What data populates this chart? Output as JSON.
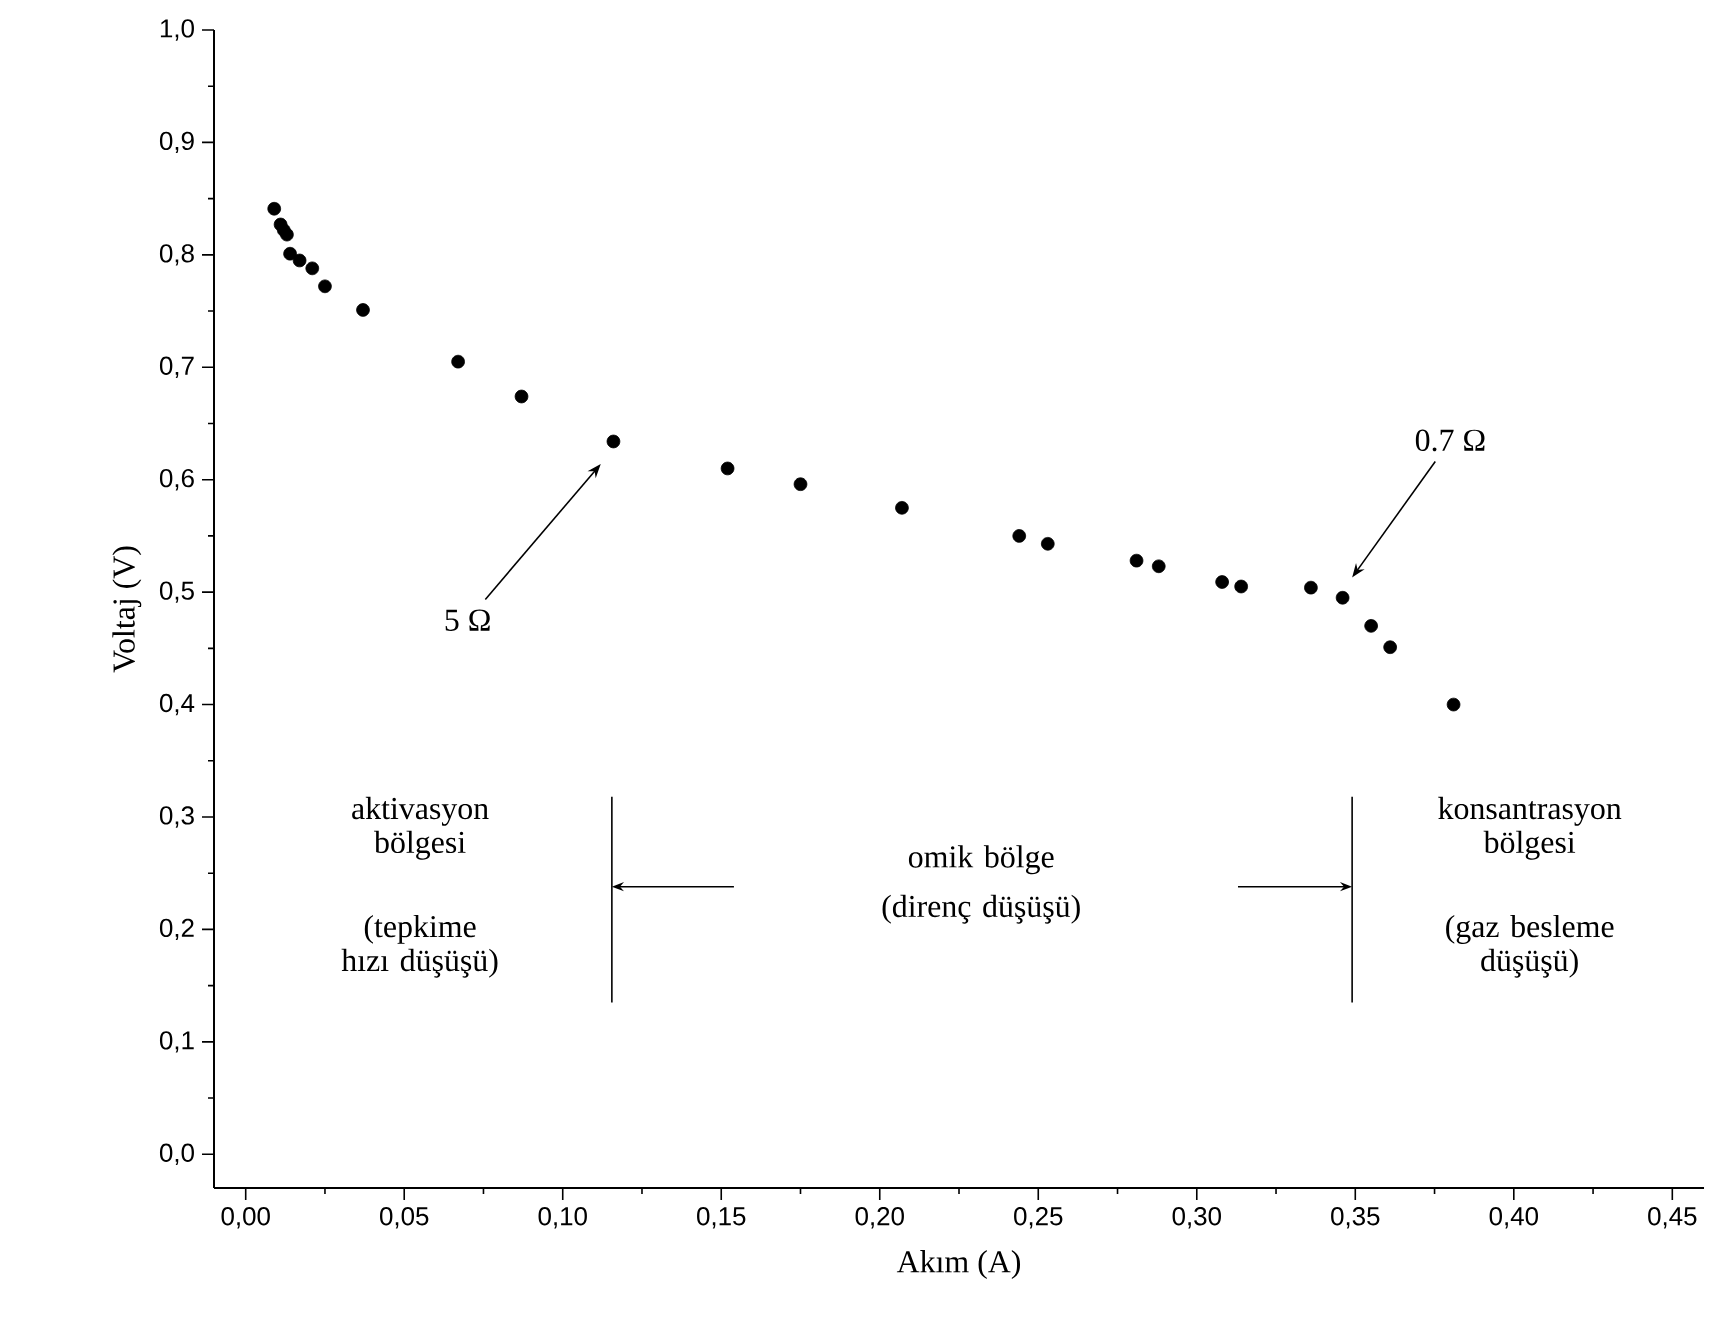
{
  "chart_data": {
    "type": "scatter",
    "xlabel": "Akım (A)",
    "ylabel": "Voltaj (V)",
    "marker": "circle",
    "grid": false,
    "xlim": [
      -0.01,
      0.46
    ],
    "ylim": [
      -0.03,
      1.0
    ],
    "xticks": [
      {
        "value": 0,
        "label": "0,00"
      },
      {
        "value": 0.05,
        "label": "0,05"
      },
      {
        "value": 0.1,
        "label": "0,10"
      },
      {
        "value": 0.15,
        "label": "0,15"
      },
      {
        "value": 0.2,
        "label": "0,20"
      },
      {
        "value": 0.25,
        "label": "0,25"
      },
      {
        "value": 0.3,
        "label": "0,30"
      },
      {
        "value": 0.35,
        "label": "0,35"
      },
      {
        "value": 0.4,
        "label": "0,40"
      },
      {
        "value": 0.45,
        "label": "0,45"
      }
    ],
    "yticks": [
      {
        "value": 0,
        "label": "0,0"
      },
      {
        "value": 0.1,
        "label": "0,1"
      },
      {
        "value": 0.2,
        "label": "0,2"
      },
      {
        "value": 0.3,
        "label": "0,3"
      },
      {
        "value": 0.4,
        "label": "0,4"
      },
      {
        "value": 0.5,
        "label": "0,5"
      },
      {
        "value": 0.6,
        "label": "0,6"
      },
      {
        "value": 0.7,
        "label": "0,7"
      },
      {
        "value": 0.8,
        "label": "0,8"
      },
      {
        "value": 0.9,
        "label": "0,9"
      },
      {
        "value": 1.0,
        "label": "1,0"
      }
    ],
    "series": [
      {
        "color": "#000000",
        "x": [
          0.009,
          0.011,
          0.012,
          0.013,
          0.014,
          0.017,
          0.021,
          0.025,
          0.037,
          0.067,
          0.087,
          0.116,
          0.152,
          0.175,
          0.207,
          0.244,
          0.253,
          0.281,
          0.288,
          0.308,
          0.314,
          0.336,
          0.346,
          0.355,
          0.361,
          0.381
        ],
        "values": [
          0.841,
          0.827,
          0.822,
          0.818,
          0.801,
          0.795,
          0.788,
          0.772,
          0.751,
          0.705,
          0.674,
          0.634,
          0.61,
          0.596,
          0.575,
          0.55,
          0.543,
          0.528,
          0.523,
          0.509,
          0.505,
          0.504,
          0.495,
          0.47,
          0.451,
          0.4
        ]
      }
    ],
    "annotations": [
      "5 Ω",
      "0.7 Ω",
      "aktivasyon bölgesi",
      "(tepkime hızı düşüşü)",
      "omik bölge",
      "(direnç düşüşü)",
      "konsantrasyon bölgesi",
      "(gaz besleme düşüşü)"
    ]
  }
}
